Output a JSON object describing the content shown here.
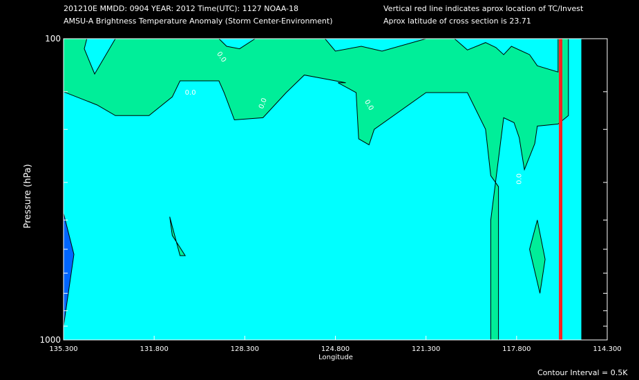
{
  "header": {
    "line1_left": "201210E  MMDD: 0904 YEAR: 2012 Time(UTC): 1127 NOAA-18",
    "line2_left": "AMSU-A Brightness Temperature Anomaly (Storm Center-Environment)",
    "line1_right": "Vertical red line indicates aprox location of TC/Invest",
    "line2_right": "Aprox latitude of cross section is 23.71"
  },
  "footer": {
    "contour_interval": "Contour Interval = 0.5K"
  },
  "colors": {
    "background": "#00ffff",
    "anomaly_positive": "#00ee99",
    "anomaly_negative": "#0066ff",
    "tc_line": "#ff2222",
    "no_data": "#000000"
  },
  "chart_data": {
    "type": "contour",
    "title": "AMSU-A Brightness Temperature Anomaly (Storm Center-Environment)",
    "xlabel": "Longitude",
    "ylabel": "Pressure (hPa)",
    "xlim": [
      135.3,
      114.3
    ],
    "ylim": [
      1000,
      100
    ],
    "y_scale": "log",
    "x_ticks": [
      "135.300",
      "131.800",
      "128.300",
      "124.800",
      "121.300",
      "117.800",
      "114.300"
    ],
    "y_tick_labels": [
      "100",
      "1000"
    ],
    "y_minor_ticks": [
      150,
      200,
      300,
      400,
      500,
      600,
      700,
      800,
      900
    ],
    "contour_label": "0.0",
    "tc_longitude": 116.1,
    "data_edge_longitude": 115.3,
    "positive_regions": [
      {
        "name": "upper",
        "points": [
          [
            135.3,
            100
          ],
          [
            134.4,
            100
          ],
          [
            134.5,
            108
          ],
          [
            134.1,
            131
          ],
          [
            133.3,
            100
          ],
          [
            129.3,
            100
          ],
          [
            129.0,
            106
          ],
          [
            128.5,
            108
          ],
          [
            127.9,
            100
          ],
          [
            125.2,
            100
          ],
          [
            124.8,
            110
          ],
          [
            123.8,
            106
          ],
          [
            123.0,
            110
          ],
          [
            121.3,
            100
          ],
          [
            120.2,
            100
          ],
          [
            119.7,
            109
          ],
          [
            119.0,
            103
          ],
          [
            118.6,
            107
          ],
          [
            118.3,
            113
          ],
          [
            118.0,
            106
          ],
          [
            117.3,
            113
          ],
          [
            117.0,
            123
          ],
          [
            116.2,
            129
          ],
          [
            116.2,
            100
          ],
          [
            115.9,
            100
          ],
          [
            115.8,
            100
          ],
          [
            115.8,
            180
          ],
          [
            116.2,
            192
          ],
          [
            117.0,
            195
          ],
          [
            117.1,
            223
          ],
          [
            117.5,
            272
          ],
          [
            117.7,
            213
          ],
          [
            117.9,
            190
          ],
          [
            118.3,
            183
          ],
          [
            118.8,
            400
          ],
          [
            118.8,
            1000
          ],
          [
            118.5,
            1000
          ],
          [
            118.5,
            310
          ],
          [
            118.8,
            285
          ],
          [
            119.0,
            200
          ],
          [
            119.7,
            151
          ],
          [
            121.3,
            151
          ],
          [
            123.3,
            200
          ],
          [
            123.5,
            225
          ],
          [
            123.9,
            215
          ],
          [
            124.0,
            151
          ],
          [
            124.7,
            140
          ],
          [
            124.4,
            140
          ],
          [
            126.0,
            132
          ],
          [
            126.7,
            151
          ],
          [
            127.6,
            183
          ],
          [
            128.7,
            186
          ],
          [
            129.1,
            151
          ],
          [
            129.3,
            138
          ],
          [
            130.8,
            138
          ],
          [
            131.1,
            156
          ],
          [
            132.0,
            180
          ],
          [
            133.3,
            180
          ],
          [
            134.0,
            166
          ],
          [
            135.3,
            150
          ]
        ]
      },
      {
        "name": "lower-left",
        "points": [
          [
            130.8,
            525
          ],
          [
            131.2,
            390
          ],
          [
            131.1,
            450
          ],
          [
            130.6,
            525
          ],
          [
            130.8,
            525
          ]
        ]
      },
      {
        "name": "lower-right",
        "points": [
          [
            116.7,
            540
          ],
          [
            117.0,
            400
          ],
          [
            117.3,
            500
          ],
          [
            116.9,
            700
          ],
          [
            116.7,
            540
          ]
        ]
      }
    ],
    "negative_regions": [
      {
        "name": "left-edge",
        "points": [
          [
            135.3,
            380
          ],
          [
            134.9,
            520
          ],
          [
            135.3,
            900
          ],
          [
            135.3,
            380
          ]
        ]
      }
    ]
  }
}
